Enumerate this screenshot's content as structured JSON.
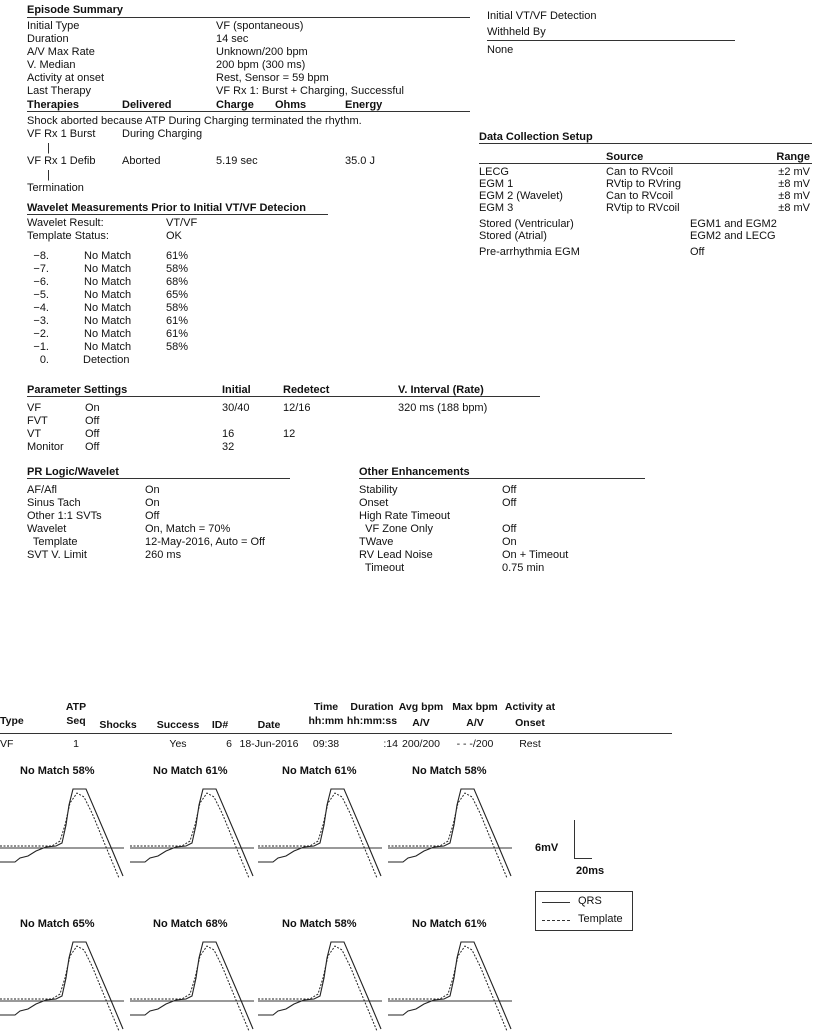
{
  "episode_summary": {
    "title": "Episode Summary",
    "rows": [
      {
        "label": "Initial Type",
        "value": "VF (spontaneous)"
      },
      {
        "label": "Duration",
        "value": "14 sec"
      },
      {
        "label": "A/V Max Rate",
        "value": "Unknown/200 bpm"
      },
      {
        "label": "V. Median",
        "value": "200 bpm (300 ms)"
      },
      {
        "label": "Activity at onset",
        "value": "Rest, Sensor = 59 bpm"
      },
      {
        "label": "Last Therapy",
        "value": "VF Rx 1: Burst + Charging, Successful"
      }
    ]
  },
  "therapies": {
    "headers": [
      "Therapies",
      "Delivered",
      "Charge",
      "Ohms",
      "Energy"
    ],
    "note": "Shock aborted because ATP During Charging terminated the rhythm.",
    "rows": [
      {
        "therapy": "VF Rx 1 Burst",
        "delivered": "During Charging",
        "charge": "",
        "ohms": "",
        "energy": ""
      },
      {
        "therapy": "VF Rx 1 Defib",
        "delivered": "Aborted",
        "charge": "5.19 sec",
        "ohms": "",
        "energy": "35.0 J"
      }
    ],
    "connector": "|",
    "termination": "Termination"
  },
  "detection": {
    "title": "Initial VT/VF Detection",
    "subtitle": "Withheld By",
    "value": "None"
  },
  "data_collection": {
    "title": "Data Collection Setup",
    "source_header": "Source",
    "range_header": "Range",
    "rows": [
      {
        "name": "LECG",
        "source": "Can to RVcoil",
        "range": "±2 mV"
      },
      {
        "name": "EGM 1",
        "source": "RVtip to RVring",
        "range": "±8 mV"
      },
      {
        "name": "EGM 2 (Wavelet)",
        "source": "Can to RVcoil",
        "range": "±8 mV"
      },
      {
        "name": "EGM 3",
        "source": "RVtip to RVcoil",
        "range": "±8 mV"
      }
    ],
    "stored": [
      {
        "name": "Stored (Ventricular)",
        "value": "EGM1 and EGM2"
      },
      {
        "name": "Stored (Atrial)",
        "value": "EGM2 and LECG"
      }
    ],
    "pre_arrhythmia": {
      "name": "Pre-arrhythmia EGM",
      "value": "Off"
    }
  },
  "wavelet": {
    "title": "Wavelet Measurements Prior to Initial VT/VF Detecion",
    "result_label": "Wavelet Result:",
    "result_value": "VT/VF",
    "template_label": "Template Status:",
    "template_value": "OK",
    "beats": [
      {
        "idx": "−8.",
        "match": "No Match",
        "pct": "61%"
      },
      {
        "idx": "−7.",
        "match": "No Match",
        "pct": "58%"
      },
      {
        "idx": "−6.",
        "match": "No Match",
        "pct": "68%"
      },
      {
        "idx": "−5.",
        "match": "No Match",
        "pct": "65%"
      },
      {
        "idx": "−4.",
        "match": "No Match",
        "pct": "58%"
      },
      {
        "idx": "−3.",
        "match": "No Match",
        "pct": "61%"
      },
      {
        "idx": "−2.",
        "match": "No Match",
        "pct": "61%"
      },
      {
        "idx": "−1.",
        "match": "No Match",
        "pct": "58%"
      },
      {
        "idx": "0.",
        "match": "Detection",
        "pct": ""
      }
    ]
  },
  "parameters": {
    "headers": [
      "Parameter Settings",
      "",
      "Initial",
      "Redetect",
      "V. Interval (Rate)"
    ],
    "rows": [
      [
        "VF",
        "On",
        "30/40",
        "12/16",
        "320 ms (188 bpm)"
      ],
      [
        "FVT",
        "Off",
        "",
        "",
        ""
      ],
      [
        "VT",
        "Off",
        "16",
        "12",
        ""
      ],
      [
        "Monitor",
        "Off",
        "32",
        "",
        ""
      ]
    ]
  },
  "pr_logic": {
    "title": "PR Logic/Wavelet",
    "rows": [
      {
        "label": "AF/Afl",
        "value": "On"
      },
      {
        "label": "Sinus Tach",
        "value": "On"
      },
      {
        "label": "Other 1:1 SVTs",
        "value": "Off"
      },
      {
        "label": "Wavelet",
        "value": "On, Match = 70%"
      },
      {
        "label": "  Template",
        "value": "12-May-2016, Auto = Off"
      },
      {
        "label": "SVT V. Limit",
        "value": "260 ms"
      }
    ]
  },
  "other_enhancements": {
    "title": "Other Enhancements",
    "rows": [
      {
        "label": "Stability",
        "value": "Off"
      },
      {
        "label": "Onset",
        "value": "Off"
      },
      {
        "label": "High Rate Timeout",
        "value": ""
      },
      {
        "label": "  VF Zone Only",
        "value": "Off"
      },
      {
        "label": "TWave",
        "value": "On"
      },
      {
        "label": "RV Lead Noise",
        "value": "On + Timeout"
      },
      {
        "label": "  Timeout",
        "value": "0.75 min"
      }
    ]
  },
  "episode_table": {
    "headers": [
      {
        "l1": "",
        "l2": "Type"
      },
      {
        "l1": "ATP",
        "l2": "Seq"
      },
      {
        "l1": "",
        "l2": "Shocks"
      },
      {
        "l1": "",
        "l2": "Success"
      },
      {
        "l1": "",
        "l2": "ID#"
      },
      {
        "l1": "",
        "l2": "Date"
      },
      {
        "l1": "Time",
        "l2": "hh:mm"
      },
      {
        "l1": "Duration",
        "l2": "hh:mm:ss"
      },
      {
        "l1": "Avg bpm",
        "l2": "A/V"
      },
      {
        "l1": "Max bpm",
        "l2": "A/V"
      },
      {
        "l1": "Activity at",
        "l2": "Onset"
      }
    ],
    "rows": [
      [
        "VF",
        "1",
        "",
        "Yes",
        "6",
        "18-Jun-2016",
        "09:38",
        ":14",
        "200/200",
        "- - -/200",
        "Rest"
      ]
    ]
  },
  "waveforms": {
    "row1": [
      "No Match 58%",
      "No Match 61%",
      "No Match 61%",
      "No Match 58%"
    ],
    "row2": [
      "No Match 65%",
      "No Match 68%",
      "No Match 58%",
      "No Match 61%"
    ],
    "scale_mv": "6mV",
    "scale_ms": "20ms",
    "legend": {
      "qrs": "QRS",
      "template": "Template"
    }
  }
}
